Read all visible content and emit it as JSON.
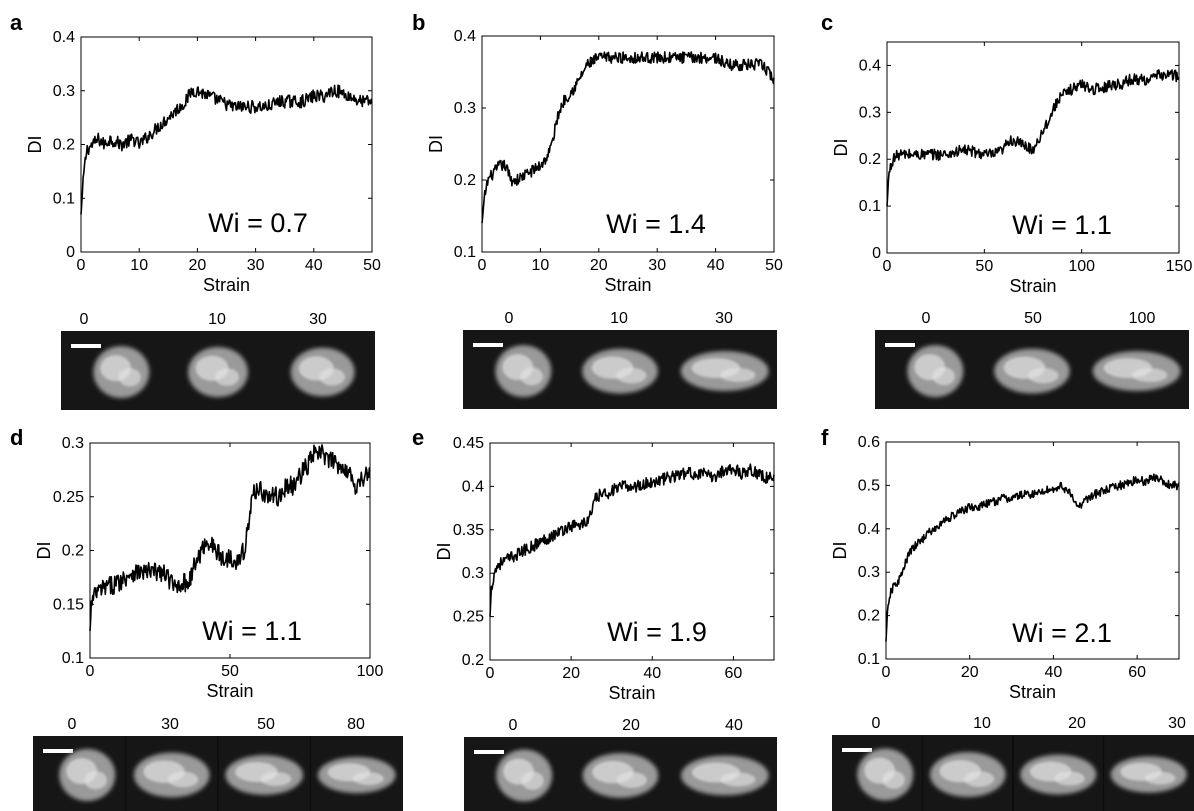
{
  "chart_data": [
    {
      "panel": "a",
      "type": "line",
      "xlabel": "Strain",
      "ylabel": "DI",
      "xlim": [
        0,
        50
      ],
      "ylim": [
        0,
        0.4
      ],
      "xticks": [
        0,
        10,
        20,
        30,
        40,
        50
      ],
      "yticks": [
        0,
        0.1,
        0.2,
        0.3,
        0.4
      ],
      "annotation": "Wi = 0.7",
      "series": [
        {
          "x": [
            0,
            0.5,
            1,
            2,
            3,
            4,
            5,
            7,
            9,
            10,
            12,
            14,
            16,
            17,
            18,
            19,
            20,
            22,
            24,
            26,
            28,
            30,
            32,
            34,
            36,
            38,
            40,
            42,
            43,
            44,
            46,
            48,
            50
          ],
          "y": [
            0.07,
            0.15,
            0.19,
            0.2,
            0.21,
            0.2,
            0.21,
            0.2,
            0.21,
            0.2,
            0.22,
            0.24,
            0.26,
            0.27,
            0.28,
            0.3,
            0.3,
            0.29,
            0.28,
            0.27,
            0.27,
            0.27,
            0.27,
            0.28,
            0.28,
            0.28,
            0.29,
            0.29,
            0.3,
            0.3,
            0.29,
            0.28,
            0.28
          ],
          "noise": 0.012
        }
      ],
      "image_labels": [
        "0",
        "10",
        "30"
      ]
    },
    {
      "panel": "b",
      "type": "line",
      "xlabel": "Strain",
      "ylabel": "DI",
      "xlim": [
        0,
        50
      ],
      "ylim": [
        0.1,
        0.4
      ],
      "xticks": [
        0,
        10,
        20,
        30,
        40,
        50
      ],
      "yticks": [
        0.1,
        0.2,
        0.3,
        0.4
      ],
      "annotation": "Wi = 1.4",
      "series": [
        {
          "x": [
            0,
            0.5,
            1,
            2,
            3,
            4,
            5,
            6,
            8,
            10,
            11,
            12,
            13,
            14,
            15,
            16,
            18,
            20,
            22,
            25,
            28,
            30,
            33,
            36,
            38,
            40,
            42,
            44,
            46,
            48,
            49,
            50
          ],
          "y": [
            0.14,
            0.18,
            0.2,
            0.21,
            0.22,
            0.22,
            0.2,
            0.2,
            0.21,
            0.22,
            0.23,
            0.25,
            0.29,
            0.31,
            0.32,
            0.33,
            0.36,
            0.37,
            0.37,
            0.37,
            0.37,
            0.37,
            0.37,
            0.37,
            0.37,
            0.37,
            0.36,
            0.36,
            0.36,
            0.36,
            0.35,
            0.34
          ],
          "noise": 0.008
        }
      ],
      "image_labels": [
        "0",
        "10",
        "30"
      ]
    },
    {
      "panel": "c",
      "type": "line",
      "xlabel": "Strain",
      "ylabel": "DI",
      "xlim": [
        0,
        150
      ],
      "ylim": [
        0,
        0.45
      ],
      "xticks": [
        0,
        50,
        100,
        150
      ],
      "yticks": [
        0,
        0.1,
        0.2,
        0.3,
        0.4
      ],
      "annotation": "Wi = 1.1",
      "series": [
        {
          "x": [
            0,
            1,
            3,
            6,
            10,
            20,
            30,
            40,
            50,
            55,
            60,
            62,
            65,
            70,
            75,
            80,
            85,
            88,
            92,
            95,
            100,
            105,
            110,
            115,
            120,
            125,
            130,
            135,
            140,
            145,
            148,
            150
          ],
          "y": [
            0.1,
            0.17,
            0.2,
            0.21,
            0.21,
            0.21,
            0.21,
            0.22,
            0.21,
            0.21,
            0.22,
            0.24,
            0.24,
            0.23,
            0.22,
            0.26,
            0.3,
            0.33,
            0.34,
            0.35,
            0.36,
            0.35,
            0.35,
            0.36,
            0.36,
            0.37,
            0.37,
            0.37,
            0.38,
            0.38,
            0.38,
            0.37
          ],
          "noise": 0.012
        }
      ],
      "image_labels": [
        "0",
        "50",
        "100"
      ]
    },
    {
      "panel": "d",
      "type": "line",
      "xlabel": "Strain",
      "ylabel": "DI",
      "xlim": [
        0,
        100
      ],
      "ylim": [
        0.1,
        0.3
      ],
      "xticks": [
        0,
        50,
        100
      ],
      "yticks": [
        0.1,
        0.15,
        0.2,
        0.25,
        0.3
      ],
      "annotation": "Wi = 1.1",
      "series": [
        {
          "x": [
            0,
            0.5,
            2,
            5,
            10,
            15,
            20,
            25,
            28,
            30,
            32,
            35,
            38,
            40,
            42,
            45,
            48,
            50,
            53,
            55,
            57,
            58,
            60,
            63,
            65,
            68,
            70,
            73,
            75,
            78,
            80,
            83,
            85,
            88,
            90,
            93,
            95,
            98,
            100
          ],
          "y": [
            0.125,
            0.15,
            0.16,
            0.165,
            0.17,
            0.18,
            0.18,
            0.18,
            0.175,
            0.165,
            0.17,
            0.17,
            0.19,
            0.2,
            0.21,
            0.2,
            0.19,
            0.195,
            0.19,
            0.2,
            0.23,
            0.25,
            0.26,
            0.25,
            0.25,
            0.25,
            0.26,
            0.26,
            0.27,
            0.28,
            0.29,
            0.29,
            0.285,
            0.28,
            0.28,
            0.27,
            0.26,
            0.27,
            0.27
          ],
          "noise": 0.009
        }
      ],
      "image_labels": [
        "0",
        "30",
        "50",
        "80"
      ]
    },
    {
      "panel": "e",
      "type": "line",
      "xlabel": "Strain",
      "ylabel": "DI",
      "xlim": [
        0,
        70
      ],
      "ylim": [
        0.2,
        0.45
      ],
      "xticks": [
        0,
        20,
        40,
        60
      ],
      "yticks": [
        0.2,
        0.25,
        0.3,
        0.35,
        0.4,
        0.45
      ],
      "annotation": "Wi = 1.9",
      "series": [
        {
          "x": [
            0,
            0.3,
            1,
            2,
            4,
            6,
            8,
            10,
            12,
            14,
            16,
            18,
            20,
            22,
            24,
            25,
            26,
            27,
            28,
            30,
            33,
            36,
            40,
            44,
            48,
            52,
            55,
            58,
            60,
            62,
            64,
            66,
            68,
            70
          ],
          "y": [
            0.25,
            0.28,
            0.3,
            0.31,
            0.315,
            0.32,
            0.325,
            0.33,
            0.335,
            0.34,
            0.345,
            0.35,
            0.355,
            0.355,
            0.36,
            0.37,
            0.385,
            0.39,
            0.39,
            0.395,
            0.4,
            0.4,
            0.405,
            0.41,
            0.415,
            0.415,
            0.41,
            0.42,
            0.42,
            0.415,
            0.42,
            0.415,
            0.41,
            0.41
          ],
          "noise": 0.007
        }
      ],
      "image_labels": [
        "0",
        "20",
        "40"
      ]
    },
    {
      "panel": "f",
      "type": "line",
      "xlabel": "Strain",
      "ylabel": "DI",
      "xlim": [
        0,
        70
      ],
      "ylim": [
        0.1,
        0.6
      ],
      "xticks": [
        0,
        20,
        40,
        60
      ],
      "yticks": [
        0.1,
        0.2,
        0.3,
        0.4,
        0.5,
        0.6
      ],
      "annotation": "Wi = 2.1",
      "series": [
        {
          "x": [
            0,
            0.3,
            1,
            2,
            3,
            4,
            5,
            6,
            8,
            10,
            12,
            14,
            16,
            18,
            20,
            22,
            25,
            28,
            30,
            33,
            36,
            38,
            40,
            42,
            44,
            45,
            46,
            48,
            50,
            53,
            56,
            59,
            62,
            64,
            66,
            68,
            70
          ],
          "y": [
            0.14,
            0.2,
            0.25,
            0.27,
            0.28,
            0.3,
            0.33,
            0.35,
            0.37,
            0.39,
            0.4,
            0.42,
            0.43,
            0.44,
            0.45,
            0.45,
            0.46,
            0.47,
            0.47,
            0.48,
            0.48,
            0.49,
            0.49,
            0.5,
            0.48,
            0.46,
            0.45,
            0.47,
            0.48,
            0.49,
            0.5,
            0.51,
            0.51,
            0.52,
            0.51,
            0.5,
            0.5
          ],
          "noise": 0.01
        }
      ],
      "image_labels": [
        "0",
        "10",
        "20",
        "30"
      ]
    }
  ]
}
